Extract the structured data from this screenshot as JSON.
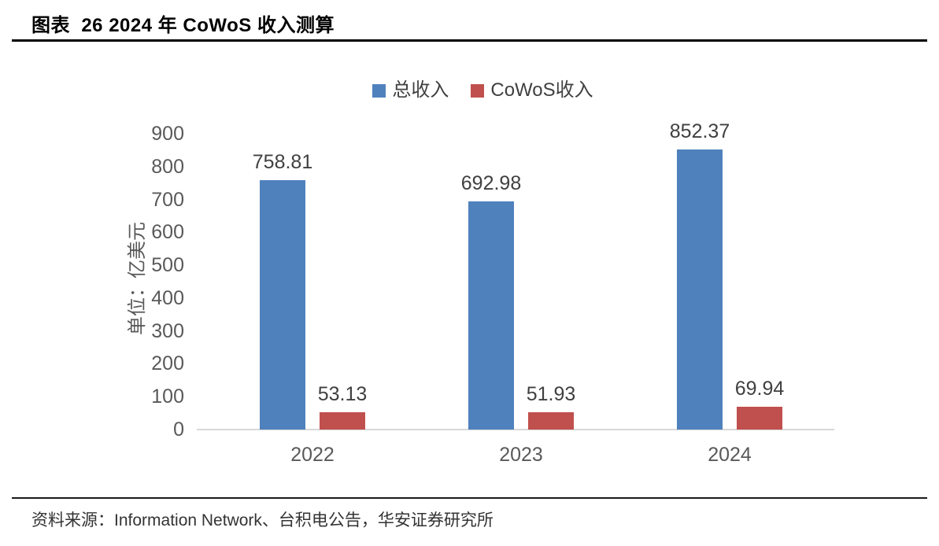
{
  "header": {
    "title": "图表  26 2024 年 CoWoS 收入测算"
  },
  "chart_data": {
    "type": "bar",
    "title": "",
    "categories": [
      "2022",
      "2023",
      "2024"
    ],
    "series": [
      {
        "name": "总收入",
        "color": "#4F81BD",
        "values": [
          758.81,
          692.98,
          852.37
        ]
      },
      {
        "name": "CoWoS收入",
        "color": "#C0504D",
        "values": [
          53.13,
          51.93,
          69.94
        ]
      }
    ],
    "value_labels": {
      "总收入": [
        "758.81",
        "692.98",
        "852.37"
      ],
      "CoWoS收入": [
        "53.13",
        "51.93",
        "69.94"
      ]
    },
    "ylabel": "单位：亿美元",
    "ylim": [
      0,
      900
    ],
    "ytick_step": 100,
    "grid": false,
    "legend_position": "top-center"
  },
  "footer": {
    "source": "资料来源：Information Network、台积电公告，华安证券研究所"
  }
}
